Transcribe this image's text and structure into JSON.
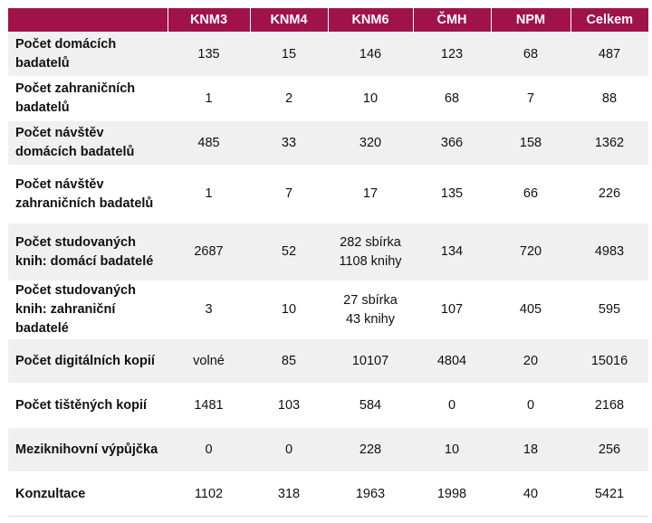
{
  "table": {
    "headers": [
      "",
      "KNM3",
      "KNM4",
      "KNM6",
      "ČMH",
      "NPM",
      "Celkem"
    ],
    "rows": [
      {
        "label": "Počet domácích badatelů",
        "values": [
          "135",
          "15",
          "146",
          "123",
          "68",
          "487"
        ]
      },
      {
        "label": "Počet zahraničních badatelů",
        "values": [
          "1",
          "2",
          "10",
          "68",
          "7",
          "88"
        ]
      },
      {
        "label": "Počet návštěv domácích badatelů",
        "values": [
          "485",
          "33",
          "320",
          "366",
          "158",
          "1362"
        ]
      },
      {
        "label": "Počet návštěv zahraničních badatelů",
        "values": [
          "1",
          "7",
          "17",
          "135",
          "66",
          "226"
        ]
      },
      {
        "label": "Počet studovaných knih: domácí badatelé",
        "values": [
          "2687",
          "52",
          [
            "282 sbírka",
            "1108 knihy"
          ],
          "134",
          "720",
          "4983"
        ]
      },
      {
        "label": "Počet studovaných knih: zahraniční badatelé",
        "values": [
          "3",
          "10",
          [
            "27 sbírka",
            "43 knihy"
          ],
          "107",
          "405",
          "595"
        ]
      },
      {
        "label": "Počet digitálních kopií",
        "values": [
          "volné",
          "85",
          "10107",
          "4804",
          "20",
          "15016"
        ]
      },
      {
        "label": "Počet tištěných kopií",
        "values": [
          "1481",
          "103",
          "584",
          "0",
          "0",
          "2168"
        ]
      },
      {
        "label": "Meziknihovní výpůjčka",
        "values": [
          "0",
          "0",
          "228",
          "10",
          "18",
          "256"
        ]
      },
      {
        "label": "Konzultace",
        "values": [
          "1102",
          "318",
          "1963",
          "1998",
          "40",
          "5421"
        ]
      }
    ]
  }
}
